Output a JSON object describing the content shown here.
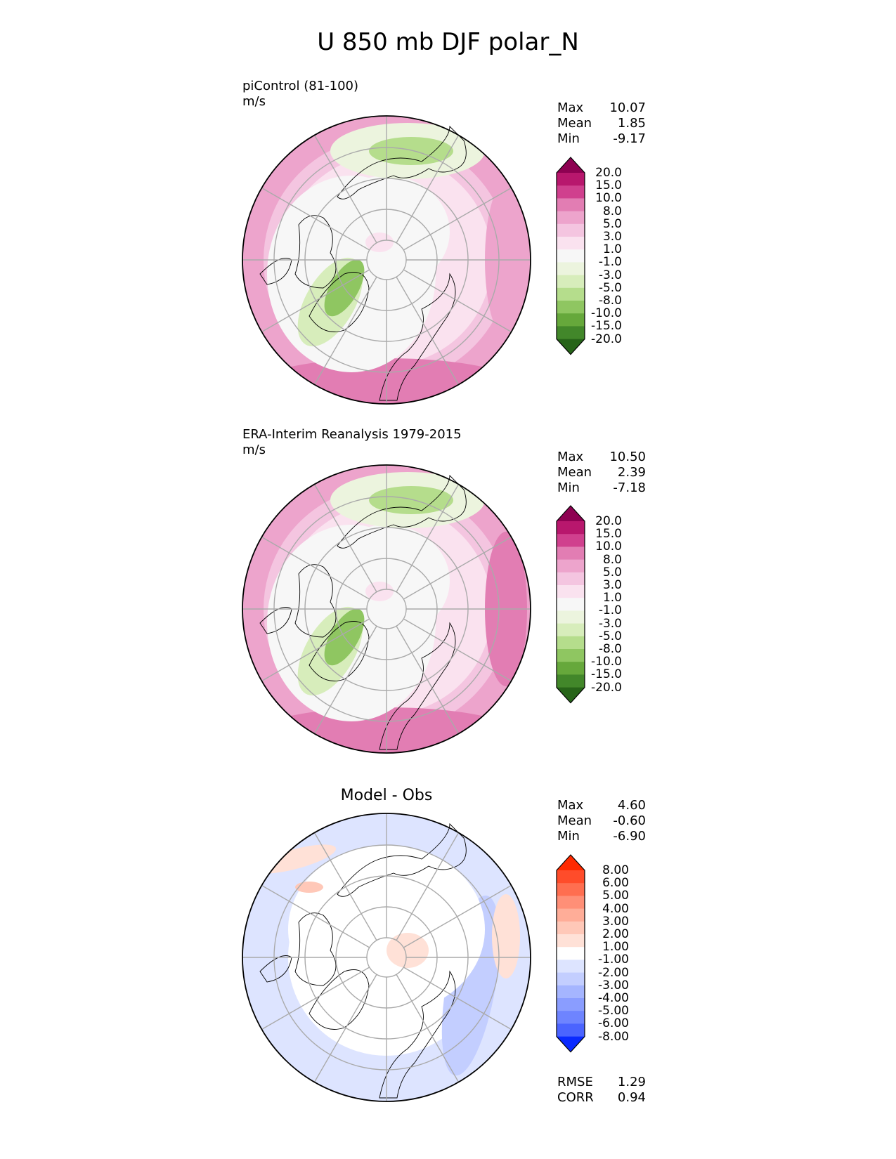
{
  "title": "U 850 mb DJF polar_N",
  "panels": [
    {
      "id": "model",
      "title": "piControl (81-100)",
      "units": "m/s",
      "stats": [
        {
          "label": "Max",
          "value": "10.07"
        },
        {
          "label": "Mean",
          "value": "1.85"
        },
        {
          "label": "Min",
          "value": "-9.17"
        }
      ],
      "colorbar": {
        "levels": [
          "20.0",
          "15.0",
          "10.0",
          "8.0",
          "5.0",
          "3.0",
          "1.0",
          "-1.0",
          "-3.0",
          "-5.0",
          "-8.0",
          "-10.0",
          "-15.0",
          "-20.0"
        ],
        "colors": [
          "#8e0152",
          "#b8176d",
          "#d0408e",
          "#e27db3",
          "#eda4cc",
          "#f4c5e0",
          "#fae2ef",
          "#f7f7f7",
          "#ecf4de",
          "#d7edbb",
          "#b5dd8c",
          "#8fc661",
          "#66a83b",
          "#42872a",
          "#276419"
        ]
      }
    },
    {
      "id": "obs",
      "title": "ERA-Interim Reanalysis 1979-2015",
      "units": "m/s",
      "stats": [
        {
          "label": "Max",
          "value": "10.50"
        },
        {
          "label": "Mean",
          "value": "2.39"
        },
        {
          "label": "Min",
          "value": "-7.18"
        }
      ],
      "colorbar": {
        "levels": [
          "20.0",
          "15.0",
          "10.0",
          "8.0",
          "5.0",
          "3.0",
          "1.0",
          "-1.0",
          "-3.0",
          "-5.0",
          "-8.0",
          "-10.0",
          "-15.0",
          "-20.0"
        ],
        "colors": [
          "#8e0152",
          "#b8176d",
          "#d0408e",
          "#e27db3",
          "#eda4cc",
          "#f4c5e0",
          "#fae2ef",
          "#f7f7f7",
          "#ecf4de",
          "#d7edbb",
          "#b5dd8c",
          "#8fc661",
          "#66a83b",
          "#42872a",
          "#276419"
        ]
      }
    },
    {
      "id": "diff",
      "title": "Model - Obs",
      "units": "",
      "stats": [
        {
          "label": "Max",
          "value": "4.60"
        },
        {
          "label": "Mean",
          "value": "-0.60"
        },
        {
          "label": "Min",
          "value": "-6.90"
        }
      ],
      "extra_stats": [
        {
          "label": "RMSE",
          "value": "1.29"
        },
        {
          "label": "CORR",
          "value": "0.94"
        }
      ],
      "colorbar": {
        "levels": [
          "8.00",
          "6.00",
          "5.00",
          "4.00",
          "3.00",
          "2.00",
          "1.00",
          "-1.00",
          "-2.00",
          "-3.00",
          "-4.00",
          "-5.00",
          "-6.00",
          "-8.00"
        ],
        "colors": [
          "#ff2a00",
          "#ff4c2a",
          "#ff6e50",
          "#ff8f77",
          "#ffad98",
          "#ffc8b8",
          "#ffe1d7",
          "#ffffff",
          "#dde4ff",
          "#c3ceff",
          "#a5b5ff",
          "#8a9dff",
          "#6e84ff",
          "#4b64ff",
          "#0a2aff"
        ]
      }
    }
  ]
}
